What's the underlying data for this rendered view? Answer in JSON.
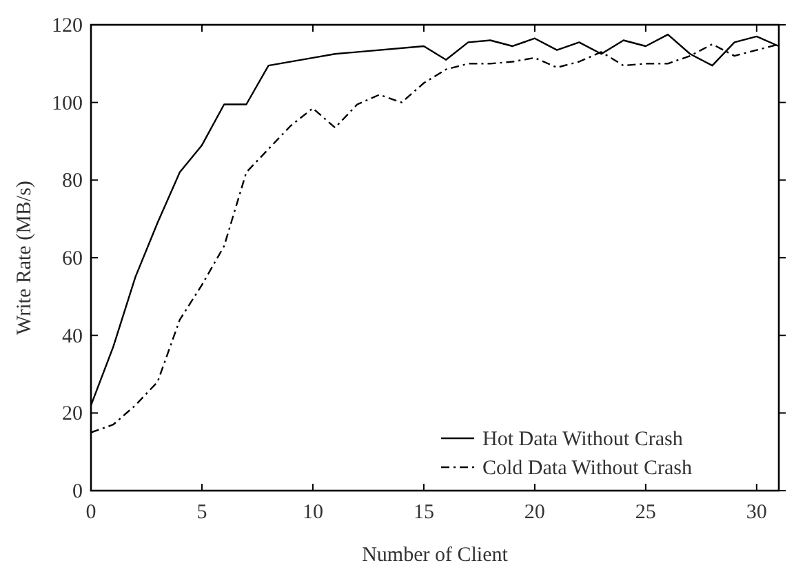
{
  "chart_data": {
    "type": "line",
    "xlabel": "Number of Client",
    "ylabel": "Write Rate (MB/s)",
    "xlim": [
      0,
      31
    ],
    "xticks": [
      0,
      5,
      10,
      15,
      20,
      25,
      30
    ],
    "ylim": [
      0,
      120
    ],
    "yticks": [
      0,
      20,
      40,
      60,
      80,
      100,
      120
    ],
    "grid": false,
    "legend": "bottom right",
    "marker": "none",
    "series": [
      {
        "name": "Hot Data Without Crash",
        "color": "#000000",
        "line_style": "solid",
        "x": [
          0,
          1,
          2,
          3,
          4,
          5,
          6,
          7,
          8,
          10,
          11,
          15,
          16,
          17,
          18,
          19,
          20,
          21,
          22,
          23,
          24,
          25,
          26,
          27,
          28,
          29,
          30,
          31
        ],
        "values": [
          22,
          37,
          55,
          69,
          82,
          89,
          99.5,
          99.5,
          109.5,
          111.5,
          112.5,
          114.5,
          111,
          115.5,
          116,
          114.5,
          116.5,
          113.5,
          115.5,
          112.5,
          116,
          114.5,
          117.5,
          112.5,
          109.5,
          115.5,
          117,
          114.5
        ]
      },
      {
        "name": "Cold Data Without Crash",
        "color": "#000000",
        "line_style": "dashed",
        "x": [
          0,
          1,
          2,
          3,
          4,
          5,
          6,
          7,
          8,
          9,
          10,
          11,
          12,
          13,
          14,
          15,
          16,
          17,
          18,
          19,
          20,
          21,
          22,
          23,
          24,
          25,
          26,
          27,
          28,
          29,
          30,
          31
        ],
        "values": [
          15,
          17,
          22,
          28,
          44,
          53,
          63,
          82,
          88,
          94,
          98.5,
          93.5,
          99.5,
          102,
          100,
          105,
          108.5,
          110,
          110,
          110.5,
          111.5,
          109,
          110.5,
          113,
          109.5,
          110,
          110,
          112,
          115,
          112,
          113.5,
          115
        ]
      }
    ]
  }
}
